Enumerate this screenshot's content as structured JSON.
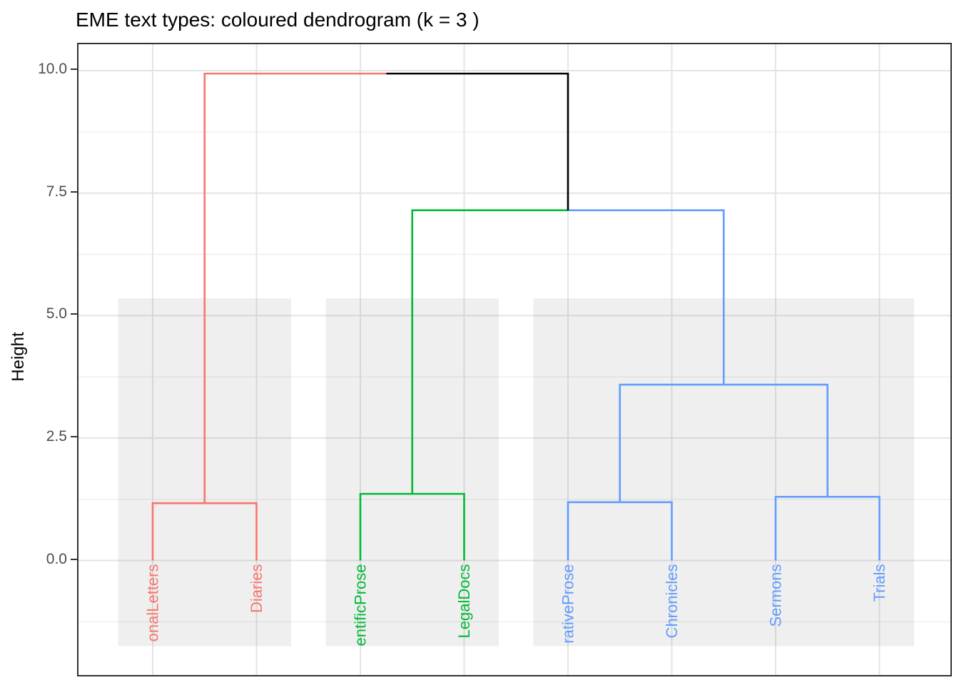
{
  "chart_data": {
    "type": "dendrogram",
    "title": "EME text types: coloured dendrogram (k = 3 )",
    "ylabel": "Height",
    "k_clusters": 3,
    "y_axis": {
      "ticks": [
        {
          "label": "10.0",
          "value": 10.0
        },
        {
          "label": "7.5",
          "value": 7.5
        },
        {
          "label": "5.0",
          "value": 5.0
        },
        {
          "label": "2.5",
          "value": 2.5
        },
        {
          "label": "0.0",
          "value": 0.0
        }
      ],
      "minor": [
        8.75,
        6.25,
        3.75,
        1.25,
        -1.25
      ],
      "grid": "on"
    },
    "leaves": [
      {
        "id": "L1",
        "label": "onalLetters",
        "cluster": "cluster1"
      },
      {
        "id": "L2",
        "label": "Diaries",
        "cluster": "cluster1"
      },
      {
        "id": "L3",
        "label": "entificProse",
        "cluster": "cluster2"
      },
      {
        "id": "L4",
        "label": "LegalDocs",
        "cluster": "cluster2"
      },
      {
        "id": "L5",
        "label": "rativeProse",
        "cluster": "cluster3"
      },
      {
        "id": "L6",
        "label": "Chronicles",
        "cluster": "cluster3"
      },
      {
        "id": "L7",
        "label": "Sermons",
        "cluster": "cluster3"
      },
      {
        "id": "L8",
        "label": "Trials",
        "cluster": "cluster3"
      }
    ],
    "merges": [
      {
        "id": "m1",
        "left": "L1",
        "right": "L2",
        "height": 1.17,
        "cluster": "cluster1"
      },
      {
        "id": "m2",
        "left": "L3",
        "right": "L4",
        "height": 1.36,
        "cluster": "cluster2"
      },
      {
        "id": "m3",
        "left": "L5",
        "right": "L6",
        "height": 1.19,
        "cluster": "cluster3"
      },
      {
        "id": "m4",
        "left": "L7",
        "right": "L8",
        "height": 1.3,
        "cluster": "cluster3"
      },
      {
        "id": "m5",
        "left": "m3",
        "right": "m4",
        "height": 3.59,
        "cluster": "cluster3"
      },
      {
        "id": "m6",
        "left": "m2",
        "right": "m5",
        "height": 7.15,
        "cluster": "trunk"
      },
      {
        "id": "m7",
        "left": "m1",
        "right": "m6",
        "height": 9.94,
        "cluster": "trunk"
      }
    ],
    "clusters": {
      "cluster1": "#F8766D",
      "cluster2": "#00BA38",
      "cluster3": "#619CFF",
      "trunk": "#000000"
    },
    "highlight_rects": [
      {
        "from": "L1",
        "to": "L2",
        "top": 5.35,
        "bottom": -1.75
      },
      {
        "from": "L3",
        "to": "L4",
        "top": 5.35,
        "bottom": -1.75
      },
      {
        "from": "L5",
        "to": "L8",
        "top": 5.35,
        "bottom": -1.75
      }
    ],
    "colors": {
      "grid_major": "#E4E4E4",
      "grid_minor": "#F0F0F0",
      "rect_fill": "rgba(127,127,127,0.12)",
      "panel_border": "#333333",
      "tick_label": "#4D4D4D",
      "tick_mark": "#333333",
      "title_text": "#000000"
    }
  }
}
